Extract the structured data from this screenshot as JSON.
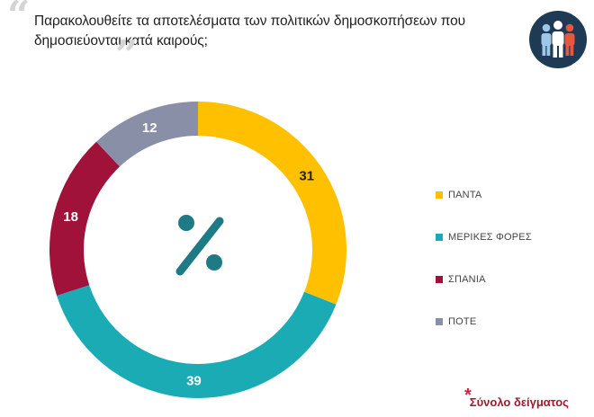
{
  "header": {
    "question": "Παρακολουθείτε τα αποτελέσματα των πολιτικών δημοσκοπήσεων που δημοσιεύονται κατά καιρούς;",
    "badge_icon": "people-group-icon"
  },
  "center_symbol": "%",
  "footnote": {
    "star": "*",
    "text": "Σύνολο δείγματος"
  },
  "chart_data": {
    "type": "pie",
    "donut": true,
    "categories": [
      "ΠΑΝΤΑ",
      "ΜΕΡΙΚΕΣ ΦΟΡΕΣ",
      "ΣΠΑΝΙΑ",
      "ΠΟΤΕ"
    ],
    "values": [
      31,
      39,
      18,
      12
    ],
    "labels": [
      "31",
      "39",
      "18",
      "12"
    ],
    "colors": [
      "#ffc000",
      "#1aabb4",
      "#a1123a",
      "#8a8fa8"
    ],
    "unit": "%",
    "legend_position": "right"
  }
}
